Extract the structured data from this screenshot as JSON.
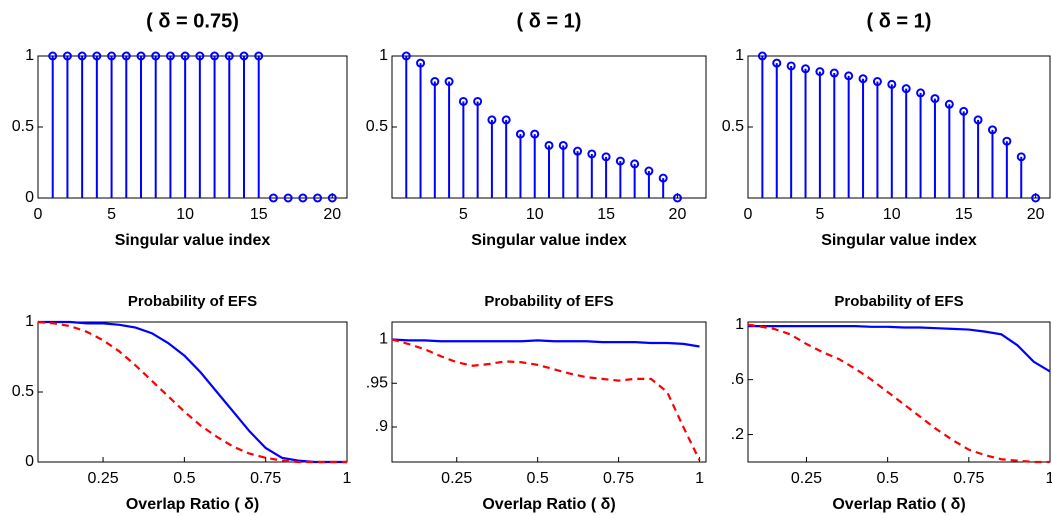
{
  "chart_data": [
    {
      "type": "stem",
      "title": "( δ = 0.75)",
      "xlabel": "Singular value index",
      "x": [
        1,
        2,
        3,
        4,
        5,
        6,
        7,
        8,
        9,
        10,
        11,
        12,
        13,
        14,
        15,
        16,
        17,
        18,
        19,
        20
      ],
      "values": [
        1,
        1,
        1,
        1,
        1,
        1,
        1,
        1,
        1,
        1,
        1,
        1,
        1,
        1,
        1,
        0,
        0,
        0,
        0,
        0
      ],
      "color": "#0000ff",
      "xlim": [
        0,
        21
      ],
      "xticks": [
        0,
        5,
        10,
        15,
        20
      ],
      "ylim": [
        0,
        1
      ],
      "yticks": [
        0,
        0.5,
        1
      ]
    },
    {
      "type": "stem",
      "title": "( δ = 1)",
      "xlabel": "Singular value index",
      "x": [
        1,
        2,
        3,
        4,
        5,
        6,
        7,
        8,
        9,
        10,
        11,
        12,
        13,
        14,
        15,
        16,
        17,
        18,
        19,
        20
      ],
      "values": [
        1,
        0.95,
        0.82,
        0.82,
        0.68,
        0.68,
        0.55,
        0.55,
        0.45,
        0.45,
        0.37,
        0.37,
        0.33,
        0.31,
        0.29,
        0.26,
        0.24,
        0.19,
        0.14,
        0
      ],
      "color": "#0000ff",
      "xlim": [
        0,
        22
      ],
      "xticks": [
        5,
        10,
        15,
        20
      ],
      "ylim": [
        0,
        1
      ],
      "yticks": [
        0.5,
        1
      ]
    },
    {
      "type": "stem",
      "title": "( δ = 1)",
      "xlabel": "Singular value index",
      "x": [
        1,
        2,
        3,
        4,
        5,
        6,
        7,
        8,
        9,
        10,
        11,
        12,
        13,
        14,
        15,
        16,
        17,
        18,
        19,
        20
      ],
      "values": [
        1,
        0.95,
        0.93,
        0.91,
        0.89,
        0.88,
        0.86,
        0.84,
        0.82,
        0.8,
        0.77,
        0.74,
        0.7,
        0.66,
        0.61,
        0.55,
        0.48,
        0.4,
        0.29,
        0
      ],
      "color": "#0000ff",
      "xlim": [
        0,
        21
      ],
      "xticks": [
        0,
        5,
        10,
        15,
        20
      ],
      "ylim": [
        0,
        1
      ],
      "yticks": [
        0.5,
        1
      ]
    },
    {
      "type": "line",
      "title": "Probability of EFS",
      "xlabel": "Overlap Ratio ( δ)",
      "x": [
        0.05,
        0.1,
        0.15,
        0.2,
        0.25,
        0.3,
        0.35,
        0.4,
        0.45,
        0.5,
        0.55,
        0.6,
        0.65,
        0.7,
        0.75,
        0.8,
        0.85,
        0.9,
        0.95,
        1
      ],
      "series": [
        {
          "color": "#0000ff",
          "linestyle": "solid",
          "values": [
            1,
            1,
            1,
            0.99,
            0.99,
            0.98,
            0.96,
            0.92,
            0.85,
            0.76,
            0.64,
            0.5,
            0.36,
            0.22,
            0.1,
            0.03,
            0.01,
            0,
            0,
            0
          ]
        },
        {
          "color": "#ff0000",
          "linestyle": "dashed",
          "values": [
            1,
            0.99,
            0.97,
            0.93,
            0.87,
            0.79,
            0.69,
            0.58,
            0.47,
            0.36,
            0.26,
            0.18,
            0.11,
            0.06,
            0.03,
            0.01,
            0,
            0,
            0,
            0
          ]
        }
      ],
      "xlim": [
        0.05,
        1
      ],
      "xticks": [
        0.25,
        0.5,
        0.75,
        1
      ],
      "ylim": [
        0,
        1
      ],
      "yticks": [
        0,
        0.5,
        1
      ]
    },
    {
      "type": "line",
      "title": "Probability of EFS",
      "xlabel": "Overlap Ratio ( δ)",
      "x": [
        0.05,
        0.1,
        0.15,
        0.2,
        0.25,
        0.3,
        0.35,
        0.4,
        0.45,
        0.5,
        0.55,
        0.6,
        0.65,
        0.7,
        0.75,
        0.8,
        0.85,
        0.9,
        0.95,
        1
      ],
      "series": [
        {
          "color": "#0000ff",
          "linestyle": "solid",
          "values": [
            1,
            0.999,
            0.999,
            0.998,
            0.998,
            0.998,
            0.998,
            0.998,
            0.998,
            0.999,
            0.998,
            0.998,
            0.998,
            0.997,
            0.997,
            0.997,
            0.996,
            0.996,
            0.995,
            0.992
          ]
        },
        {
          "color": "#ff0000",
          "linestyle": "dashed",
          "values": [
            1,
            0.995,
            0.989,
            0.981,
            0.974,
            0.97,
            0.972,
            0.975,
            0.974,
            0.971,
            0.966,
            0.961,
            0.957,
            0.955,
            0.953,
            0.955,
            0.955,
            0.94,
            0.9,
            0.862
          ]
        }
      ],
      "xlim": [
        0.05,
        1.02
      ],
      "xticks": [
        0.25,
        0.5,
        0.75,
        1
      ],
      "ylim": [
        0.86,
        1.02
      ],
      "yticks": [
        1,
        {
          "value": 0.95,
          "label": ".95"
        },
        {
          "value": 0.9,
          "label": ".9"
        }
      ]
    },
    {
      "type": "line",
      "title": "Probability of EFS",
      "xlabel": "Overlap Ratio ( δ)",
      "x": [
        0.07,
        0.1,
        0.15,
        0.2,
        0.25,
        0.3,
        0.35,
        0.4,
        0.45,
        0.5,
        0.55,
        0.6,
        0.65,
        0.7,
        0.75,
        0.8,
        0.85,
        0.9,
        0.95,
        1
      ],
      "series": [
        {
          "color": "#0000ff",
          "linestyle": "solid",
          "values": [
            0.99,
            0.99,
            0.99,
            0.99,
            0.99,
            0.99,
            0.99,
            0.99,
            0.985,
            0.985,
            0.98,
            0.98,
            0.975,
            0.97,
            0.965,
            0.95,
            0.93,
            0.85,
            0.73,
            0.66
          ]
        },
        {
          "color": "#ff0000",
          "linestyle": "dashed",
          "values": [
            1,
            0.99,
            0.97,
            0.93,
            0.86,
            0.8,
            0.75,
            0.68,
            0.6,
            0.51,
            0.42,
            0.33,
            0.24,
            0.16,
            0.09,
            0.05,
            0.02,
            0.01,
            0,
            0
          ]
        }
      ],
      "xlim": [
        0.07,
        1
      ],
      "xticks": [
        0.25,
        0.5,
        0.75,
        1
      ],
      "ylim": [
        0,
        1.02
      ],
      "yticks": [
        1,
        {
          "value": 0.6,
          "label": ".6"
        },
        {
          "value": 0.2,
          "label": ".2"
        }
      ]
    }
  ]
}
